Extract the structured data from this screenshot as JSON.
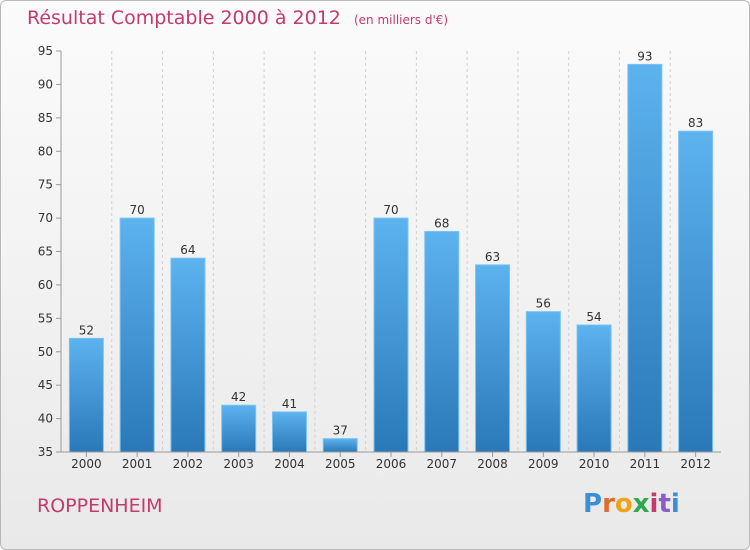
{
  "chart_data": {
    "type": "bar",
    "title": "Résultat Comptable 2000 à 2012",
    "subtitle": "(en milliers d'€)",
    "categories": [
      "2000",
      "2001",
      "2002",
      "2003",
      "2004",
      "2005",
      "2006",
      "2007",
      "2008",
      "2009",
      "2010",
      "2011",
      "2012"
    ],
    "values": [
      52,
      70,
      64,
      42,
      41,
      37,
      70,
      68,
      63,
      56,
      54,
      93,
      83
    ],
    "ylim": [
      35,
      95
    ],
    "yticks": [
      35,
      40,
      45,
      50,
      55,
      60,
      65,
      70,
      75,
      80,
      85,
      90,
      95
    ],
    "xlabel": "",
    "ylabel": "",
    "grid": "vertical-dashed",
    "bar_color": "#4ea6e4",
    "title_color": "#c33a6f"
  },
  "commune": "ROPPENHEIM",
  "logo": {
    "text": "Proxiti",
    "letters": [
      "P",
      "r",
      "o",
      "x",
      "i",
      "t",
      "i"
    ],
    "colors": [
      "#3c8fd4",
      "#e26b2a",
      "#f0a319",
      "#2fa84f",
      "#c33a6f",
      "#8a5fc7",
      "#3c8fd4"
    ]
  }
}
